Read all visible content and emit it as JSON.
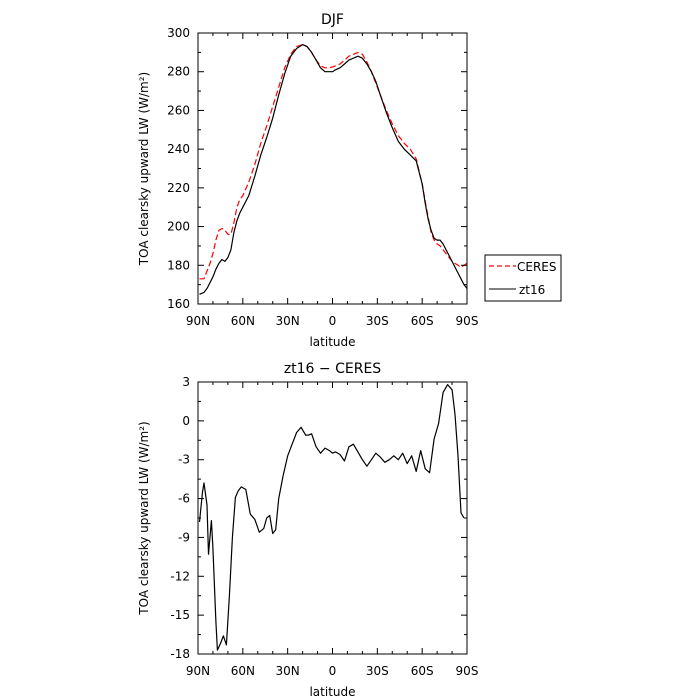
{
  "chart_data": [
    {
      "type": "line",
      "title": "DJF",
      "xlabel": "latitude",
      "ylabel": "TOA clearsky upward LW (W/m²)",
      "xlim": [
        -90,
        90
      ],
      "ylim": [
        160,
        300
      ],
      "xticks": [
        {
          "v": -90,
          "label": "90N"
        },
        {
          "v": -60,
          "label": "60N"
        },
        {
          "v": -30,
          "label": "30N"
        },
        {
          "v": 0,
          "label": "0"
        },
        {
          "v": 30,
          "label": "30S"
        },
        {
          "v": 60,
          "label": "60S"
        },
        {
          "v": 90,
          "label": "90S"
        }
      ],
      "yticks": [
        160,
        180,
        200,
        220,
        240,
        260,
        280,
        300
      ],
      "legend": {
        "placement": "right",
        "entries": [
          {
            "name": "CERES",
            "color": "#ff0000",
            "dash": "dashed"
          },
          {
            "name": "zt16",
            "color": "#000000",
            "dash": "solid"
          }
        ]
      },
      "series": [
        {
          "name": "CERES",
          "color": "#ff0000",
          "dash": "dashed",
          "x": [
            -89,
            -86,
            -84,
            -82,
            -80,
            -78,
            -76,
            -74,
            -72,
            -70,
            -68,
            -66,
            -64,
            -62,
            -60,
            -56,
            -52,
            -48,
            -44,
            -40,
            -36,
            -32,
            -28,
            -24,
            -20,
            -17,
            -14,
            -11,
            -8,
            -5,
            -2,
            0,
            2,
            5,
            8,
            11,
            14,
            17,
            20,
            23,
            26,
            29,
            32,
            36,
            40,
            44,
            48,
            52,
            56,
            60,
            62,
            64,
            66,
            68,
            70,
            72,
            74,
            76,
            78,
            80,
            82,
            84,
            86,
            88,
            90
          ],
          "y": [
            173,
            173,
            177,
            181,
            186,
            193,
            198,
            199,
            198,
            196,
            196,
            202,
            210,
            214,
            216,
            223,
            232,
            243,
            252,
            262,
            272,
            282,
            289,
            293,
            294,
            293,
            290,
            286,
            283,
            282,
            282,
            282.5,
            283,
            284,
            286,
            288,
            289,
            290,
            289,
            285,
            280,
            274,
            268,
            260,
            253,
            247,
            243,
            240,
            235,
            222,
            213,
            205,
            197,
            193,
            191,
            190,
            188,
            186,
            184,
            182,
            181,
            180,
            179,
            180,
            181
          ]
        },
        {
          "name": "zt16",
          "color": "#000000",
          "dash": "solid",
          "x": [
            -89,
            -86,
            -84,
            -82,
            -80,
            -78,
            -76,
            -74,
            -72,
            -70,
            -68,
            -66,
            -64,
            -62,
            -60,
            -56,
            -52,
            -48,
            -44,
            -40,
            -36,
            -32,
            -28,
            -24,
            -20,
            -17,
            -14,
            -11,
            -8,
            -5,
            -2,
            0,
            2,
            5,
            8,
            11,
            14,
            17,
            20,
            23,
            26,
            29,
            32,
            36,
            40,
            44,
            48,
            52,
            56,
            60,
            62,
            64,
            66,
            68,
            70,
            72,
            74,
            76,
            78,
            80,
            82,
            84,
            86,
            88,
            90
          ],
          "y": [
            165,
            166,
            168,
            171,
            174,
            178,
            181,
            183,
            182,
            184,
            188,
            197,
            203,
            207,
            210,
            216,
            226,
            237,
            246,
            256,
            268,
            279,
            288,
            292,
            294,
            293,
            290,
            286,
            282,
            280,
            280,
            280,
            281,
            282,
            284,
            286,
            287,
            288,
            287,
            284,
            280,
            275,
            268,
            259,
            251,
            244,
            240,
            237,
            234,
            222,
            212,
            204,
            198,
            194,
            193,
            193,
            191,
            188,
            185,
            182,
            179,
            176,
            173,
            170,
            168
          ]
        }
      ]
    },
    {
      "type": "line",
      "title": "zt16 − CERES",
      "xlabel": "latitude",
      "ylabel": "TOA clearsky upward LW (W/m²)",
      "xlim": [
        -90,
        90
      ],
      "ylim": [
        -18,
        3
      ],
      "xticks": [
        {
          "v": -90,
          "label": "90N"
        },
        {
          "v": -60,
          "label": "60N"
        },
        {
          "v": -30,
          "label": "30N"
        },
        {
          "v": 0,
          "label": "0"
        },
        {
          "v": 30,
          "label": "30S"
        },
        {
          "v": 60,
          "label": "60S"
        },
        {
          "v": 90,
          "label": "90S"
        }
      ],
      "yticks": [
        3,
        0,
        -3,
        -6,
        -9,
        -12,
        -15,
        -18
      ],
      "series": [
        {
          "name": "zt16",
          "color": "#000000",
          "dash": "solid",
          "x": [
            -89,
            -87,
            -86,
            -84,
            -83,
            -81,
            -80,
            -78,
            -77,
            -75,
            -73,
            -71,
            -69,
            -67,
            -65,
            -63,
            -61,
            -58,
            -55,
            -52,
            -49,
            -46,
            -44,
            -42,
            -40,
            -38,
            -36,
            -33,
            -30,
            -27,
            -24,
            -21,
            -18,
            -16,
            -14,
            -11,
            -8,
            -5,
            -2,
            0,
            2,
            5,
            8,
            11,
            14,
            17,
            20,
            23,
            26,
            29,
            32,
            35,
            38,
            41,
            44,
            47,
            50,
            53,
            56,
            59,
            62,
            65,
            68,
            71,
            74,
            77,
            80,
            82,
            84,
            86,
            88
          ],
          "y": [
            -7.8,
            -5.5,
            -4.8,
            -6.5,
            -10.3,
            -7.7,
            -9.8,
            -15.5,
            -17.7,
            -17.2,
            -16.6,
            -17.3,
            -13.5,
            -9,
            -5.9,
            -5.4,
            -5.1,
            -5.3,
            -7.2,
            -7.6,
            -8.6,
            -8.3,
            -7.5,
            -7.3,
            -8.7,
            -8.4,
            -6,
            -4.2,
            -2.7,
            -1.8,
            -0.9,
            -0.5,
            -1.1,
            -1.1,
            -1,
            -2,
            -2.5,
            -2.1,
            -2.3,
            -2.5,
            -2.4,
            -2.6,
            -3.1,
            -2,
            -1.8,
            -2.4,
            -3,
            -3.5,
            -3,
            -2.5,
            -2.8,
            -3.2,
            -3,
            -2.7,
            -3,
            -2.5,
            -3.3,
            -2.7,
            -3.9,
            -2.3,
            -3.7,
            -4,
            -1.4,
            -0.2,
            2.2,
            2.8,
            2.4,
            0.5,
            -2.7,
            -7.1,
            -7.5
          ]
        }
      ]
    }
  ]
}
